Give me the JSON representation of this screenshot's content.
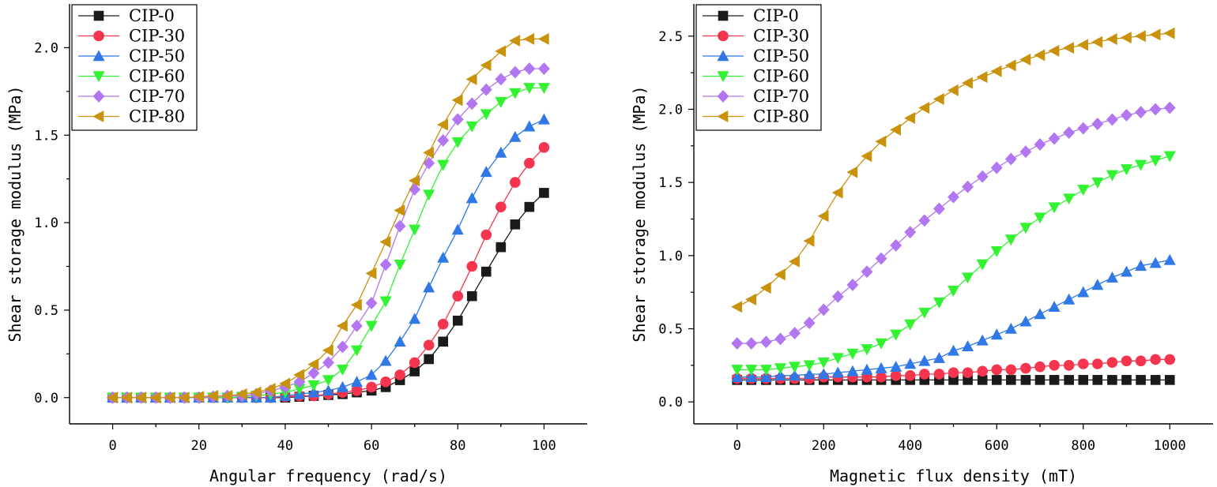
{
  "colors": {
    "CIP-0": "#1a1a1a",
    "CIP-30": "#f5344e",
    "CIP-50": "#2f78e6",
    "CIP-60": "#32f232",
    "CIP-70": "#b276f0",
    "CIP-80": "#c8920d"
  },
  "markers": {
    "CIP-0": "square",
    "CIP-30": "circle",
    "CIP-50": "triangle-up",
    "CIP-60": "triangle-down",
    "CIP-70": "diamond",
    "CIP-80": "triangle-left"
  },
  "chart_data": [
    {
      "type": "line",
      "xlabel": "Angular frequency (rad/s)",
      "ylabel": "Shear storage modulus (MPa)",
      "xlim": [
        -10,
        110
      ],
      "ylim": [
        -0.15,
        2.25
      ],
      "xticks": [
        "0",
        "20",
        "40",
        "60",
        "80",
        "100"
      ],
      "xtick_values": [
        0,
        20,
        40,
        60,
        80,
        100
      ],
      "yticks": [
        "0.0",
        "0.5",
        "1.0",
        "1.5",
        "2.0"
      ],
      "ytick_values": [
        0,
        0.5,
        1.0,
        1.5,
        2.0
      ],
      "legend": "top-left",
      "grid": false,
      "x": [
        0,
        3.3,
        6.6,
        10,
        13.3,
        16.6,
        20,
        23.3,
        26.6,
        30,
        33.3,
        36.6,
        40,
        43.3,
        46.6,
        50,
        53.3,
        56.6,
        60,
        63.3,
        66.6,
        70,
        73.3,
        76.6,
        80,
        83.3,
        86.6,
        90,
        93.3,
        96.6,
        100
      ],
      "series": [
        {
          "name": "CIP-0",
          "values": [
            0,
            0,
            0,
            0,
            0,
            0,
            0,
            0,
            0,
            0,
            0,
            0,
            0,
            0.005,
            0.01,
            0.015,
            0.02,
            0.03,
            0.04,
            0.06,
            0.1,
            0.15,
            0.22,
            0.32,
            0.44,
            0.58,
            0.72,
            0.86,
            0.99,
            1.09,
            1.17
          ]
        },
        {
          "name": "CIP-30",
          "values": [
            0,
            0,
            0,
            0,
            0,
            0,
            0,
            0,
            0,
            0,
            0,
            0,
            0.005,
            0.01,
            0.01,
            0.02,
            0.03,
            0.04,
            0.06,
            0.09,
            0.13,
            0.2,
            0.3,
            0.42,
            0.58,
            0.75,
            0.93,
            1.09,
            1.23,
            1.34,
            1.43
          ]
        },
        {
          "name": "CIP-50",
          "values": [
            0,
            0,
            0,
            0,
            0,
            0,
            0,
            0,
            0,
            0,
            0,
            0,
            0.01,
            0.02,
            0.03,
            0.04,
            0.06,
            0.09,
            0.13,
            0.21,
            0.32,
            0.45,
            0.63,
            0.8,
            0.96,
            1.14,
            1.29,
            1.4,
            1.49,
            1.55,
            1.59
          ]
        },
        {
          "name": "CIP-60",
          "values": [
            0,
            0,
            0,
            0,
            0,
            0,
            0,
            0,
            0,
            0.005,
            0.01,
            0.02,
            0.03,
            0.05,
            0.07,
            0.1,
            0.16,
            0.27,
            0.41,
            0.55,
            0.76,
            0.96,
            1.16,
            1.33,
            1.46,
            1.55,
            1.62,
            1.69,
            1.74,
            1.77,
            1.77
          ]
        },
        {
          "name": "CIP-70",
          "values": [
            0,
            0,
            0,
            0,
            0,
            0,
            0,
            0.005,
            0.01,
            0.01,
            0.02,
            0.04,
            0.06,
            0.09,
            0.14,
            0.2,
            0.29,
            0.41,
            0.54,
            0.76,
            0.98,
            1.19,
            1.34,
            1.47,
            1.59,
            1.68,
            1.76,
            1.82,
            1.86,
            1.88,
            1.88
          ]
        },
        {
          "name": "CIP-80",
          "values": [
            0,
            0,
            0,
            0,
            0,
            0,
            0.005,
            0.01,
            0.01,
            0.02,
            0.03,
            0.05,
            0.08,
            0.13,
            0.19,
            0.27,
            0.41,
            0.53,
            0.71,
            0.89,
            1.07,
            1.24,
            1.4,
            1.56,
            1.7,
            1.82,
            1.9,
            1.98,
            2.04,
            2.05,
            2.05
          ]
        }
      ]
    },
    {
      "type": "line",
      "xlabel": "Magnetic flux density (mT)",
      "ylabel": "Shear storage modulus (MPa)",
      "xlim": [
        -100,
        1100
      ],
      "ylim": [
        -0.15,
        2.72
      ],
      "xticks": [
        "0",
        "200",
        "400",
        "600",
        "800",
        "1000"
      ],
      "xtick_values": [
        0,
        200,
        400,
        600,
        800,
        1000
      ],
      "yticks": [
        "0.0",
        "0.5",
        "1.0",
        "1.5",
        "2.0",
        "2.5"
      ],
      "ytick_values": [
        0,
        0.5,
        1.0,
        1.5,
        2.0,
        2.5
      ],
      "legend": "top-left",
      "grid": false,
      "x": [
        0,
        33,
        67,
        100,
        133,
        167,
        200,
        233,
        267,
        300,
        333,
        367,
        400,
        433,
        467,
        500,
        533,
        567,
        600,
        633,
        667,
        700,
        733,
        767,
        800,
        833,
        867,
        900,
        933,
        967,
        1000
      ],
      "series": [
        {
          "name": "CIP-0",
          "values": [
            0.15,
            0.15,
            0.15,
            0.15,
            0.15,
            0.15,
            0.15,
            0.15,
            0.15,
            0.15,
            0.15,
            0.15,
            0.15,
            0.15,
            0.15,
            0.15,
            0.15,
            0.15,
            0.15,
            0.15,
            0.15,
            0.15,
            0.15,
            0.15,
            0.15,
            0.15,
            0.15,
            0.15,
            0.15,
            0.15,
            0.15
          ]
        },
        {
          "name": "CIP-30",
          "values": [
            0.16,
            0.16,
            0.16,
            0.16,
            0.16,
            0.16,
            0.17,
            0.17,
            0.17,
            0.17,
            0.17,
            0.18,
            0.18,
            0.19,
            0.19,
            0.2,
            0.2,
            0.21,
            0.22,
            0.22,
            0.23,
            0.24,
            0.25,
            0.25,
            0.26,
            0.26,
            0.27,
            0.28,
            0.28,
            0.29,
            0.29
          ]
        },
        {
          "name": "CIP-50",
          "values": [
            0.17,
            0.17,
            0.17,
            0.18,
            0.18,
            0.19,
            0.19,
            0.2,
            0.21,
            0.22,
            0.23,
            0.24,
            0.26,
            0.28,
            0.3,
            0.35,
            0.38,
            0.42,
            0.46,
            0.5,
            0.55,
            0.6,
            0.65,
            0.7,
            0.75,
            0.8,
            0.85,
            0.89,
            0.93,
            0.95,
            0.97
          ]
        },
        {
          "name": "CIP-60",
          "values": [
            0.22,
            0.22,
            0.22,
            0.23,
            0.24,
            0.25,
            0.27,
            0.3,
            0.33,
            0.36,
            0.4,
            0.46,
            0.53,
            0.61,
            0.68,
            0.76,
            0.85,
            0.94,
            1.03,
            1.11,
            1.19,
            1.26,
            1.33,
            1.39,
            1.45,
            1.5,
            1.55,
            1.59,
            1.62,
            1.65,
            1.68
          ]
        },
        {
          "name": "CIP-70",
          "values": [
            0.4,
            0.4,
            0.41,
            0.43,
            0.47,
            0.54,
            0.63,
            0.72,
            0.8,
            0.89,
            0.98,
            1.07,
            1.16,
            1.24,
            1.32,
            1.4,
            1.47,
            1.54,
            1.6,
            1.66,
            1.71,
            1.76,
            1.8,
            1.84,
            1.87,
            1.9,
            1.93,
            1.96,
            1.98,
            2.0,
            2.01
          ]
        },
        {
          "name": "CIP-80",
          "values": [
            0.65,
            0.7,
            0.78,
            0.87,
            0.96,
            1.1,
            1.27,
            1.43,
            1.57,
            1.68,
            1.78,
            1.86,
            1.94,
            2.01,
            2.07,
            2.13,
            2.18,
            2.22,
            2.26,
            2.3,
            2.34,
            2.37,
            2.4,
            2.42,
            2.44,
            2.46,
            2.48,
            2.49,
            2.5,
            2.51,
            2.52
          ]
        }
      ]
    }
  ]
}
